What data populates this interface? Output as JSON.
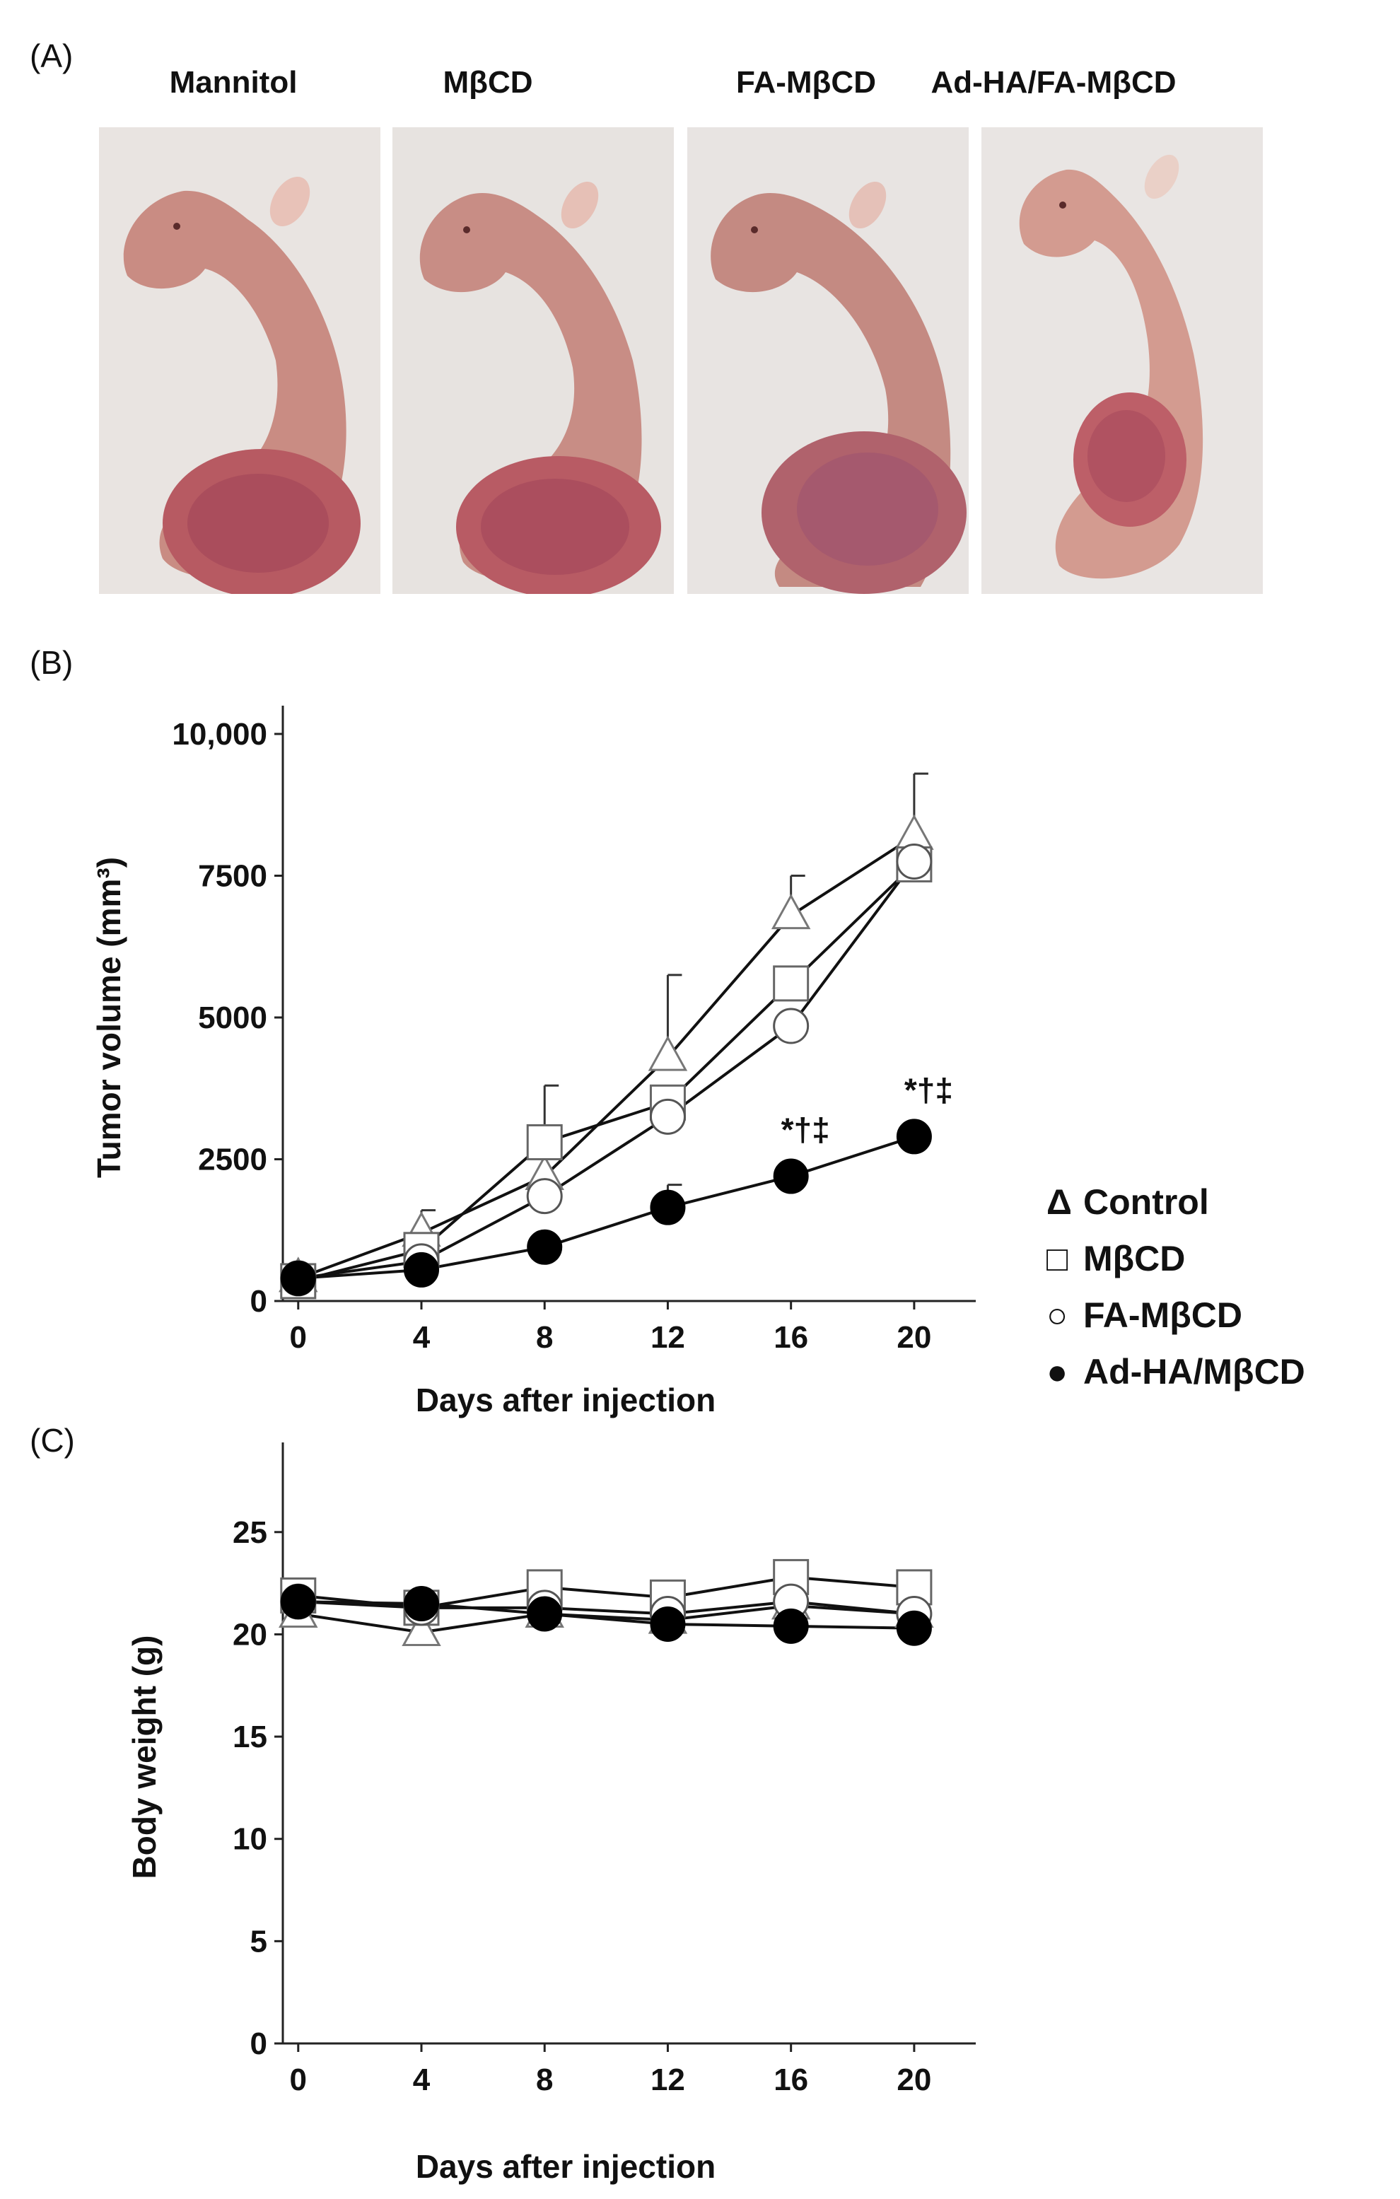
{
  "panels": {
    "a": "(A)",
    "b": "(B)",
    "c": "(C)"
  },
  "photos": [
    {
      "label": "Mannitol"
    },
    {
      "label": "MβCD"
    },
    {
      "label": "FA-MβCD"
    },
    {
      "label": "Ad-HA/FA-MβCD"
    }
  ],
  "legend": {
    "items": [
      {
        "symbol": "Δ",
        "label": "Control"
      },
      {
        "symbol": "□",
        "label": "MβCD"
      },
      {
        "symbol": "○",
        "label": "FA-MβCD"
      },
      {
        "symbol": "●",
        "label": "Ad-HA/MβCD"
      }
    ]
  },
  "chart_data": [
    {
      "type": "line",
      "title": "",
      "xlabel": "Days after injection",
      "ylabel": "Tumor volume (mm³)",
      "x": [
        0,
        4,
        8,
        12,
        16,
        20
      ],
      "xlim": [
        -0.5,
        22
      ],
      "ylim": [
        0,
        10000
      ],
      "yticks": [
        0,
        2500,
        5000,
        7500,
        10000
      ],
      "ytick_labels": [
        "0",
        "2500",
        "5000",
        "7500",
        "10,000"
      ],
      "series": [
        {
          "name": "Control",
          "marker": "triangle",
          "values": [
            400,
            1200,
            2200,
            4300,
            6800,
            8200
          ],
          "error": [
            0,
            400,
            0,
            1450,
            700,
            1100
          ]
        },
        {
          "name": "MβCD",
          "marker": "square",
          "values": [
            350,
            900,
            2800,
            3500,
            5600,
            7700
          ],
          "error": [
            0,
            0,
            1000,
            0,
            0,
            0
          ]
        },
        {
          "name": "FA-MβCD",
          "marker": "circle-open",
          "values": [
            400,
            700,
            1850,
            3250,
            4850,
            7750
          ],
          "error": [
            0,
            0,
            0,
            0,
            0,
            0
          ]
        },
        {
          "name": "Ad-HA/MβCD",
          "marker": "circle-filled",
          "values": [
            400,
            550,
            950,
            1650,
            2200,
            2900
          ],
          "error": [
            0,
            0,
            0,
            400,
            0,
            0
          ]
        }
      ],
      "annotations": [
        {
          "x": 16,
          "y": 2200,
          "text": "*†‡"
        },
        {
          "x": 20,
          "y": 2900,
          "text": "*†‡"
        }
      ]
    },
    {
      "type": "line",
      "title": "",
      "xlabel": "Days after injection",
      "ylabel": "Body weight (g)",
      "x": [
        0,
        4,
        8,
        12,
        16,
        20
      ],
      "xlim": [
        -0.5,
        22
      ],
      "ylim": [
        0,
        28
      ],
      "yticks": [
        0,
        5,
        10,
        15,
        20,
        25
      ],
      "ytick_labels": [
        "0",
        "5",
        "10",
        "15",
        "20",
        "25"
      ],
      "series": [
        {
          "name": "Control",
          "marker": "triangle",
          "values": [
            21.0,
            20.1,
            21.0,
            20.7,
            21.4,
            21.0
          ]
        },
        {
          "name": "MβCD",
          "marker": "square",
          "values": [
            21.9,
            21.3,
            22.3,
            21.8,
            22.8,
            22.3
          ]
        },
        {
          "name": "FA-MβCD",
          "marker": "circle-open",
          "values": [
            21.6,
            21.3,
            21.3,
            21.0,
            21.6,
            21.0
          ]
        },
        {
          "name": "Ad-HA/MβCD",
          "marker": "circle-filled",
          "values": [
            21.6,
            21.5,
            21.0,
            20.5,
            20.4,
            20.3
          ]
        }
      ]
    }
  ]
}
